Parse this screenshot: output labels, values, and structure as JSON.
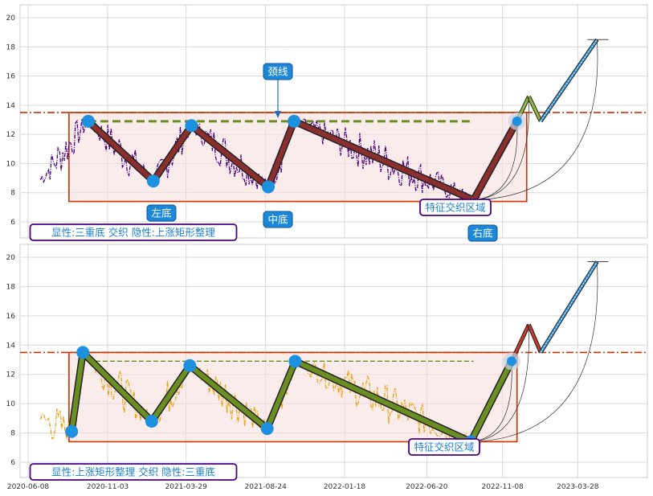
{
  "chart_data": [
    {
      "type": "line",
      "title": "",
      "xlabel": "",
      "ylabel": "",
      "ylim": [
        5,
        21
      ],
      "yticks": [
        "6",
        "8",
        "10",
        "12",
        "14",
        "16",
        "18",
        "20"
      ],
      "grid": true,
      "neckline_y": 13.5,
      "colors": {
        "price": "#4b0082",
        "pattern": "#8b2e2e",
        "pattern_outline": "#222222",
        "marker": "#1e90e0",
        "neckline": "#cc3300",
        "dashed_level": "#6b8e23",
        "rect": "#cc3300",
        "rect_fill": "#f8dcdc",
        "forecast_up": "#8fbc3f",
        "forecast_final": "#3a9ad9"
      },
      "rect": {
        "x_start": "2020-08-23",
        "x_end": "2022-12-23",
        "y_low": 7.4,
        "y_high": 13.5
      },
      "dashed_level": {
        "y": 12.9,
        "x_start": "2020-09-28",
        "x_end": "2022-09-15"
      },
      "pattern_points": [
        {
          "x": "2020-09-28",
          "y": 12.9
        },
        {
          "x": "2021-01-27",
          "y": 8.8
        },
        {
          "x": "2021-04-08",
          "y": 12.6
        },
        {
          "x": "2021-08-29",
          "y": 8.4
        },
        {
          "x": "2021-10-16",
          "y": 12.9
        },
        {
          "x": "2022-09-15",
          "y": 7.5
        },
        {
          "x": "2022-12-05",
          "y": 12.9
        }
      ],
      "forecast": [
        {
          "x": "2022-12-05",
          "y": 12.9
        },
        {
          "x": "2022-12-27",
          "y": 14.6
        },
        {
          "x": "2023-01-18",
          "y": 12.9
        },
        {
          "x": "2023-05-03",
          "y": 18.5
        }
      ],
      "annotations": {
        "neckline_label": "颈线",
        "left_bottom": "左底",
        "middle_bottom": "中底",
        "right_bottom": "右底",
        "feature_zone": "特征交织区域",
        "status": "显性:三重底 交织 隐性:上涨矩形整理"
      }
    },
    {
      "type": "line",
      "title": "",
      "xlabel": "",
      "ylabel": "",
      "ylim": [
        5,
        21
      ],
      "yticks": [
        "6",
        "8",
        "10",
        "12",
        "14",
        "16",
        "18",
        "20"
      ],
      "xticks": [
        "2020-06-08",
        "2020-11-03",
        "2021-03-29",
        "2021-08-24",
        "2022-01-18",
        "2022-06-20",
        "2022-11-08",
        "2023-03-28"
      ],
      "grid": true,
      "neckline_y": 13.5,
      "colors": {
        "price": "#e8a317",
        "pattern": "#6b8e23",
        "pattern_outline": "#222222",
        "marker": "#1e90e0",
        "neckline": "#cc3300",
        "dashed_level": "#6b8e23",
        "rect": "#cc3300",
        "rect_fill": "#f8dcdc",
        "forecast_up": "#c0392b",
        "forecast_final": "#3a9ad9"
      },
      "rect": {
        "x_start": "2020-08-23",
        "x_end": "2022-12-05",
        "y_low": 7.4,
        "y_high": 13.5
      },
      "dashed_level": {
        "y": 12.9,
        "x_start": "2020-09-28",
        "x_end": "2022-09-15"
      },
      "pattern_points": [
        {
          "x": "2020-08-28",
          "y": 8.1
        },
        {
          "x": "2020-09-18",
          "y": 13.5
        },
        {
          "x": "2021-01-24",
          "y": 8.8
        },
        {
          "x": "2021-04-05",
          "y": 12.6
        },
        {
          "x": "2021-08-27",
          "y": 8.3
        },
        {
          "x": "2021-10-18",
          "y": 12.9
        },
        {
          "x": "2022-09-10",
          "y": 7.4
        },
        {
          "x": "2022-11-25",
          "y": 12.9
        }
      ],
      "forecast": [
        {
          "x": "2022-11-25",
          "y": 12.9
        },
        {
          "x": "2022-12-27",
          "y": 15.4
        },
        {
          "x": "2023-01-18",
          "y": 13.5
        },
        {
          "x": "2023-05-03",
          "y": 19.7
        }
      ],
      "annotations": {
        "feature_zone": "特征交织区域",
        "status": "显性:上涨矩形整理 交织 隐性:三重底"
      }
    }
  ]
}
